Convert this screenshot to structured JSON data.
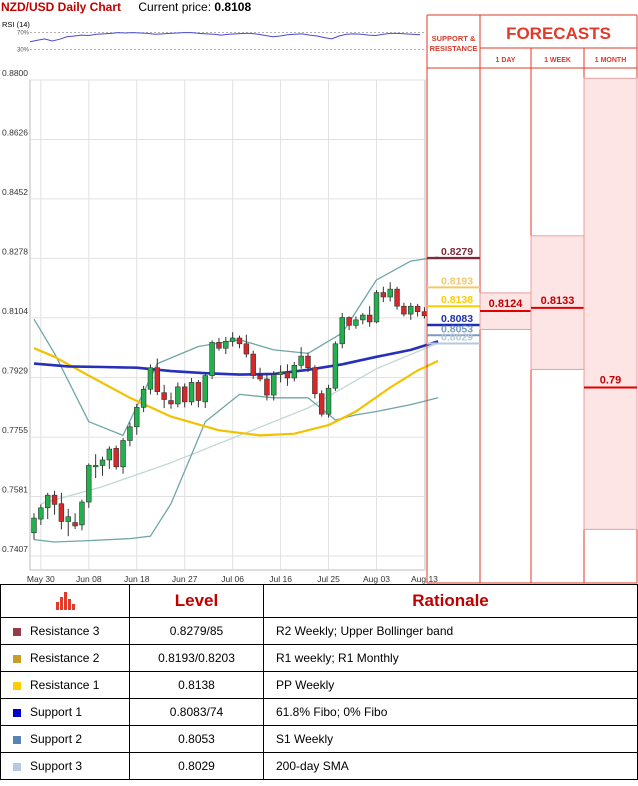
{
  "header": {
    "title": "NZD/USD Daily Chart",
    "current_price_label": "Current price:",
    "current_price": "0.8108"
  },
  "rsi": {
    "label": "RSI (14)",
    "levels": [
      "70%",
      "30%"
    ],
    "values": [
      48,
      52,
      55,
      50,
      54,
      60,
      62,
      64,
      63,
      66,
      67,
      68,
      70,
      69,
      70,
      69,
      68,
      66,
      67,
      68,
      69,
      70,
      70,
      68,
      67,
      66,
      64,
      66,
      67,
      68,
      68,
      66,
      63,
      60,
      62,
      65,
      66,
      67,
      64,
      62,
      58,
      55,
      62,
      66,
      67,
      66,
      64,
      63,
      66,
      68,
      68,
      67,
      66,
      65
    ]
  },
  "forecast_panel": {
    "support_resistance_label": "SUPPORT & RESISTANCE",
    "forecasts_label": "FORECASTS",
    "columns": [
      "1 DAY",
      "1 WEEK",
      "1 MONTH"
    ],
    "sr_levels": [
      {
        "label": "0.8279",
        "value": 0.8279,
        "color": "#7b2c3c"
      },
      {
        "label": "0.8193",
        "value": 0.8193,
        "color": "#f3c869"
      },
      {
        "label": "0.8138",
        "value": 0.8138,
        "color": "#ffcc00"
      },
      {
        "label": "0.8083",
        "value": 0.8083,
        "color": "#1f2fb4"
      },
      {
        "label": "0.8053",
        "value": 0.8053,
        "color": "#7a9bbf"
      },
      {
        "label": "0.8029",
        "value": 0.8029,
        "color": "#b7c8da"
      }
    ],
    "forecasts": [
      {
        "column": "1 DAY",
        "label": "0.8124",
        "value": 0.8124,
        "low": 0.807,
        "high": 0.8177
      },
      {
        "column": "1 WEEK",
        "label": "0.8133",
        "value": 0.8133,
        "low": 0.7953,
        "high": 0.8344
      },
      {
        "column": "1 MONTH",
        "label": "0.79",
        "value": 0.79,
        "low": 0.7485,
        "high": 0.8805
      }
    ]
  },
  "chart_data": {
    "type": "candlestick",
    "title": "NZD/USD Daily Chart",
    "ylim": [
      0.7407,
      0.88
    ],
    "y_ticks": [
      "0.8800",
      "0.8626",
      "0.8452",
      "0.8278",
      "0.8104",
      "0.7929",
      "0.7755",
      "0.7581",
      "0.7407"
    ],
    "x_ticks": [
      "May 30",
      "Jun 08",
      "Jun 18",
      "Jun 27",
      "Jul 06",
      "Jul 16",
      "Jul 25",
      "Aug 03",
      "Aug 13"
    ],
    "x_tick_index": [
      1,
      8,
      15,
      22,
      29,
      36,
      43,
      50,
      57
    ],
    "grid": true,
    "candles": [
      [
        0.7475,
        0.7532,
        0.7455,
        0.7518
      ],
      [
        0.7515,
        0.7558,
        0.7498,
        0.7548
      ],
      [
        0.7548,
        0.7592,
        0.7515,
        0.7585
      ],
      [
        0.7585,
        0.7598,
        0.7528,
        0.7558
      ],
      [
        0.756,
        0.7592,
        0.7485,
        0.7508
      ],
      [
        0.7508,
        0.7545,
        0.7465,
        0.7522
      ],
      [
        0.7505,
        0.7532,
        0.7486,
        0.7495
      ],
      [
        0.7498,
        0.7572,
        0.7482,
        0.7565
      ],
      [
        0.7565,
        0.7678,
        0.7548,
        0.7672
      ],
      [
        0.7668,
        0.7705,
        0.7635,
        0.7672
      ],
      [
        0.7672,
        0.7698,
        0.7642,
        0.7688
      ],
      [
        0.7688,
        0.7728,
        0.7662,
        0.772
      ],
      [
        0.7722,
        0.773,
        0.766,
        0.7668
      ],
      [
        0.7668,
        0.7752,
        0.7648,
        0.7745
      ],
      [
        0.7745,
        0.7798,
        0.7728,
        0.7785
      ],
      [
        0.7785,
        0.7852,
        0.7762,
        0.7842
      ],
      [
        0.7842,
        0.7905,
        0.7828,
        0.7895
      ],
      [
        0.7895,
        0.7968,
        0.788,
        0.7958
      ],
      [
        0.7958,
        0.7985,
        0.7878,
        0.7888
      ],
      [
        0.7885,
        0.7908,
        0.784,
        0.7865
      ],
      [
        0.7862,
        0.7885,
        0.7838,
        0.7852
      ],
      [
        0.7852,
        0.7915,
        0.7842,
        0.7902
      ],
      [
        0.7902,
        0.7912,
        0.7842,
        0.7858
      ],
      [
        0.7858,
        0.7928,
        0.7848,
        0.7915
      ],
      [
        0.7915,
        0.7922,
        0.7842,
        0.7862
      ],
      [
        0.7858,
        0.7945,
        0.784,
        0.7935
      ],
      [
        0.7935,
        0.8038,
        0.7925,
        0.8032
      ],
      [
        0.8032,
        0.8045,
        0.8008,
        0.8015
      ],
      [
        0.8015,
        0.8048,
        0.7998,
        0.8035
      ],
      [
        0.8035,
        0.8062,
        0.802,
        0.8045
      ],
      [
        0.8045,
        0.8052,
        0.8015,
        0.8028
      ],
      [
        0.8028,
        0.8055,
        0.7988,
        0.7998
      ],
      [
        0.7998,
        0.8008,
        0.7925,
        0.7935
      ],
      [
        0.7935,
        0.7958,
        0.7918,
        0.7925
      ],
      [
        0.7925,
        0.7942,
        0.7862,
        0.7878
      ],
      [
        0.7878,
        0.7948,
        0.7862,
        0.7938
      ],
      [
        0.7938,
        0.7965,
        0.7915,
        0.7945
      ],
      [
        0.7945,
        0.7968,
        0.7905,
        0.7928
      ],
      [
        0.7928,
        0.7975,
        0.7918,
        0.7965
      ],
      [
        0.7965,
        0.8018,
        0.7955,
        0.7992
      ],
      [
        0.7992,
        0.8002,
        0.7945,
        0.7958
      ],
      [
        0.7958,
        0.7965,
        0.7868,
        0.7882
      ],
      [
        0.7882,
        0.7892,
        0.7815,
        0.7822
      ],
      [
        0.7822,
        0.7908,
        0.7812,
        0.7898
      ],
      [
        0.7898,
        0.8035,
        0.789,
        0.8028
      ],
      [
        0.8028,
        0.8118,
        0.8015,
        0.8105
      ],
      [
        0.8105,
        0.8108,
        0.8068,
        0.8082
      ],
      [
        0.8082,
        0.8108,
        0.8072,
        0.8098
      ],
      [
        0.8098,
        0.8118,
        0.8085,
        0.8112
      ],
      [
        0.8112,
        0.8138,
        0.8078,
        0.8092
      ],
      [
        0.8092,
        0.8185,
        0.8088,
        0.8178
      ],
      [
        0.8178,
        0.8195,
        0.815,
        0.8165
      ],
      [
        0.8165,
        0.8208,
        0.8152,
        0.8188
      ],
      [
        0.8188,
        0.8195,
        0.8128,
        0.8138
      ],
      [
        0.8138,
        0.8148,
        0.8108,
        0.8115
      ],
      [
        0.8115,
        0.8148,
        0.8098,
        0.8138
      ],
      [
        0.8138,
        0.8145,
        0.8108,
        0.8122
      ],
      [
        0.8122,
        0.8135,
        0.8102,
        0.811
      ]
    ],
    "series": [
      {
        "name": "",
        "color": "#2630b8",
        "values": [
          [
            0,
            0.797
          ],
          [
            5,
            0.7962
          ],
          [
            10,
            0.796
          ],
          [
            15,
            0.7958
          ],
          [
            20,
            0.7948
          ],
          [
            25,
            0.7942
          ],
          [
            30,
            0.7938
          ],
          [
            35,
            0.794
          ],
          [
            40,
            0.7952
          ],
          [
            45,
            0.7968
          ],
          [
            50,
            0.799
          ],
          [
            55,
            0.801
          ],
          [
            59,
            0.8035
          ]
        ]
      },
      {
        "name": "",
        "color": "#f2c200",
        "values": [
          [
            0,
            0.8015
          ],
          [
            3,
            0.799
          ],
          [
            8,
            0.7935
          ],
          [
            14,
            0.787
          ],
          [
            20,
            0.7815
          ],
          [
            27,
            0.7775
          ],
          [
            33,
            0.776
          ],
          [
            38,
            0.7765
          ],
          [
            43,
            0.779
          ],
          [
            47,
            0.783
          ],
          [
            52,
            0.79
          ],
          [
            56,
            0.795
          ],
          [
            59,
            0.7978
          ]
        ]
      },
      {
        "name": "",
        "color": "#6fa6a6",
        "values": [
          [
            0,
            0.81
          ],
          [
            3,
            0.8
          ],
          [
            8,
            0.78
          ],
          [
            13,
            0.776
          ],
          [
            18,
            0.797
          ],
          [
            24,
            0.802
          ],
          [
            30,
            0.804
          ],
          [
            35,
            0.801
          ],
          [
            40,
            0.8
          ],
          [
            45,
            0.806
          ],
          [
            50,
            0.8215
          ],
          [
            55,
            0.827
          ],
          [
            59,
            0.8282
          ]
        ]
      },
      {
        "name": "",
        "color": "#6fa6a6",
        "values": [
          [
            0,
            0.7455
          ],
          [
            3,
            0.7448
          ],
          [
            8,
            0.7452
          ],
          [
            14,
            0.7458
          ],
          [
            17,
            0.7465
          ],
          [
            20,
            0.756
          ],
          [
            25,
            0.78
          ],
          [
            30,
            0.788
          ],
          [
            35,
            0.787
          ],
          [
            40,
            0.787
          ],
          [
            44,
            0.7805
          ],
          [
            47,
            0.782
          ],
          [
            50,
            0.783
          ],
          [
            55,
            0.785
          ],
          [
            59,
            0.787
          ]
        ]
      },
      {
        "name": "",
        "color": "#c3d7d7",
        "values": [
          [
            1,
            0.756
          ],
          [
            10,
            0.761
          ],
          [
            20,
            0.768
          ],
          [
            30,
            0.776
          ],
          [
            40,
            0.784
          ],
          [
            50,
            0.7955
          ],
          [
            59,
            0.803
          ]
        ]
      }
    ]
  },
  "table": {
    "header_icon": "bar-chart-icon",
    "columns": [
      "Level",
      "Rationale"
    ],
    "rows": [
      {
        "name": "Resistance 3",
        "color": "#933c4c",
        "level": "0.8279/85",
        "rationale": "R2 Weekly; Upper Bollinger band"
      },
      {
        "name": "Resistance 2",
        "color": "#c99c2a",
        "level": "0.8193/0.8203",
        "rationale": "R1 weekly; R1 Monthly"
      },
      {
        "name": "Resistance 1",
        "color": "#ffcc00",
        "level": "0.8138",
        "rationale": "PP Weekly"
      },
      {
        "name": "Support 1",
        "color": "#0000cc",
        "level": "0.8083/74",
        "rationale": "61.8% Fibo; 0% Fibo"
      },
      {
        "name": "Support 2",
        "color": "#5684b6",
        "level": "0.8053",
        "rationale": "S1 Weekly"
      },
      {
        "name": "Support 3",
        "color": "#b7c9dd",
        "level": "0.8029",
        "rationale": "200-day SMA"
      }
    ]
  }
}
